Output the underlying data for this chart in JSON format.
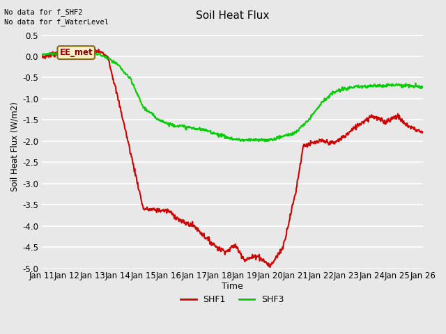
{
  "title": "Soil Heat Flux",
  "xlabel": "Time",
  "ylabel": "Soil Heat Flux (W/m2)",
  "ylim": [
    -5.0,
    0.75
  ],
  "yticks": [
    0.5,
    0.0,
    -0.5,
    -1.0,
    -1.5,
    -2.0,
    -2.5,
    -3.0,
    -3.5,
    -4.0,
    -4.5,
    -5.0
  ],
  "xtick_labels": [
    "Jan 11",
    "Jan 12",
    "Jan 13",
    "Jan 14",
    "Jan 15",
    "Jan 16",
    "Jan 17",
    "Jan 18",
    "Jan 19",
    "Jan 20",
    "Jan 21",
    "Jan 22",
    "Jan 23",
    "Jan 24",
    "Jan 25",
    "Jan 26"
  ],
  "note1": "No data for f_SHF2",
  "note2": "No data for f_WaterLevel",
  "annotation": "EE_met",
  "bg_color": "#e8e8e8",
  "plot_bg_color": "#e8e8e8",
  "grid_color": "#ffffff",
  "line_color_SHF1": "#cc0000",
  "line_color_SHF3": "#00cc00",
  "legend_labels": [
    "SHF1",
    "SHF3"
  ],
  "shf1_knots_t": [
    0,
    0.8,
    1.2,
    2.0,
    2.3,
    2.6,
    3.2,
    4.0,
    5.0,
    5.5,
    6.0,
    6.5,
    7.0,
    7.3,
    7.6,
    8.0,
    8.5,
    9.0,
    9.5,
    10.0,
    10.3,
    10.7,
    11.0,
    11.5,
    12.0,
    12.5,
    13.0,
    13.5,
    14.0,
    14.3,
    15.0
  ],
  "shf1_knots_v": [
    -0.02,
    0.1,
    0.18,
    0.15,
    0.1,
    0.0,
    -1.5,
    -3.6,
    -3.65,
    -3.9,
    -4.0,
    -4.3,
    -4.55,
    -4.6,
    -4.45,
    -4.8,
    -4.7,
    -4.95,
    -4.5,
    -3.2,
    -2.1,
    -2.05,
    -2.0,
    -2.05,
    -1.85,
    -1.6,
    -1.4,
    -1.55,
    -1.4,
    -1.6,
    -1.8
  ],
  "shf3_knots_t": [
    0,
    0.5,
    1.0,
    1.5,
    2.0,
    2.3,
    2.6,
    3.0,
    3.5,
    4.0,
    4.5,
    5.0,
    5.5,
    6.0,
    6.5,
    7.0,
    7.5,
    8.0,
    9.0,
    10.0,
    10.5,
    11.0,
    11.5,
    12.0,
    12.5,
    13.0,
    13.5,
    14.0,
    14.5,
    15.0
  ],
  "shf3_knots_v": [
    0.05,
    0.07,
    0.12,
    0.1,
    0.08,
    0.04,
    -0.05,
    -0.2,
    -0.55,
    -1.2,
    -1.45,
    -1.6,
    -1.65,
    -1.7,
    -1.75,
    -1.85,
    -1.95,
    -1.98,
    -1.97,
    -1.8,
    -1.5,
    -1.1,
    -0.85,
    -0.75,
    -0.72,
    -0.7,
    -0.68,
    -0.67,
    -0.7,
    -0.72
  ]
}
